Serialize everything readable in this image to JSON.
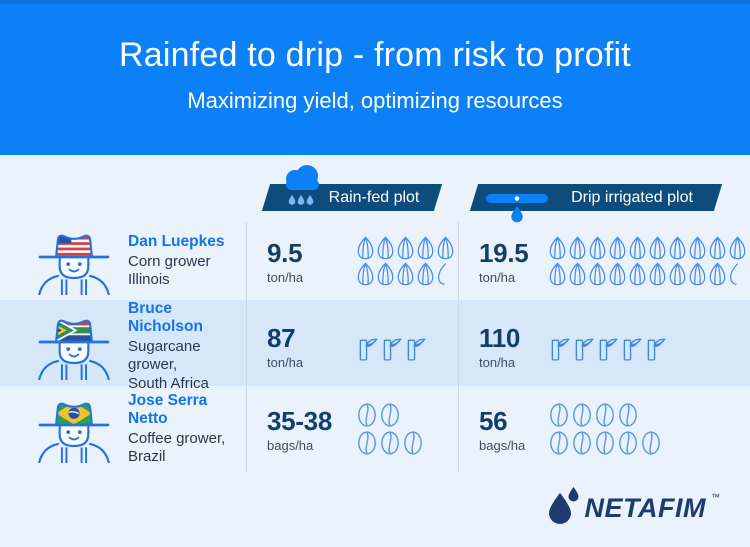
{
  "header": {
    "title": "Rainfed to drip - from risk to profit",
    "subtitle": "Maximizing yield, optimizing resources"
  },
  "columns": {
    "rainfed": {
      "label": "Rain-fed plot",
      "icon": "rain-cloud-icon"
    },
    "drip": {
      "label": "Drip irrigated plot",
      "icon": "drip-line-icon"
    }
  },
  "rows": [
    {
      "name": "Dan Luepkes",
      "role": "Corn grower",
      "location": "Illinois",
      "flag": "usa",
      "rainfed": {
        "value": "9.5",
        "unit": "ton/ha",
        "picto": {
          "icon": "corn",
          "rows": [
            5,
            4.5
          ]
        }
      },
      "drip": {
        "value": "19.5",
        "unit": "ton/ha",
        "picto": {
          "icon": "corn",
          "rows": [
            10,
            9.5
          ]
        }
      }
    },
    {
      "name": "Bruce Nicholson",
      "role": "Sugarcane grower,",
      "location": "South Africa",
      "flag": "rsa",
      "rainfed": {
        "value": "87",
        "unit": "ton/ha",
        "picto": {
          "icon": "cane",
          "rows": [
            3
          ]
        }
      },
      "drip": {
        "value": "110",
        "unit": "ton/ha",
        "picto": {
          "icon": "cane",
          "rows": [
            5
          ]
        }
      }
    },
    {
      "name": "Jose Serra Netto",
      "role": "Coffee grower,",
      "location": "Brazil",
      "flag": "brazil",
      "rainfed": {
        "value": "35-38",
        "unit": "bags/ha",
        "picto": {
          "icon": "coffee",
          "rows": [
            2,
            3
          ]
        }
      },
      "drip": {
        "value": "56",
        "unit": "bags/ha",
        "picto": {
          "icon": "coffee",
          "rows": [
            4,
            5
          ]
        }
      }
    }
  ],
  "footer": {
    "brand": "NETAFIM",
    "tm": "™",
    "icon": "water-drop-icon"
  },
  "colors": {
    "accent_blue": "#0c80f6",
    "banner_navy": "#0d4c7d",
    "highlight_row": "#d6e7f9",
    "name_blue": "#1674e8",
    "value_navy": "#133e6a",
    "brand_navy": "#1d3b6e"
  },
  "chart_data": {
    "type": "bar",
    "title": "Rainfed to drip - from risk to profit",
    "subtitle": "Maximizing yield, optimizing resources",
    "categories": [
      "Dan Luepkes (Corn, Illinois)",
      "Bruce Nicholson (Sugarcane, South Africa)",
      "Jose Serra Netto (Coffee, Brazil)"
    ],
    "series": [
      {
        "name": "Rain-fed plot",
        "values": [
          9.5,
          87,
          36.5
        ],
        "labels": [
          "9.5 ton/ha",
          "87 ton/ha",
          "35-38 bags/ha"
        ]
      },
      {
        "name": "Drip irrigated plot",
        "values": [
          19.5,
          110,
          56
        ],
        "labels": [
          "19.5 ton/ha",
          "110 ton/ha",
          "56 bags/ha"
        ]
      }
    ],
    "units": [
      "ton/ha",
      "ton/ha",
      "bags/ha"
    ]
  }
}
